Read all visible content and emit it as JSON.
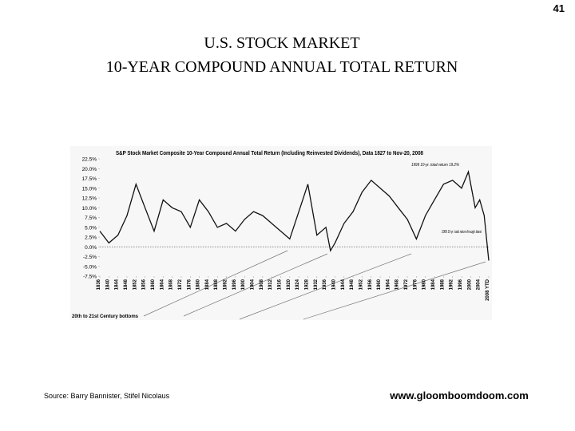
{
  "page_number": "41",
  "title_lines": [
    "U.S. STOCK MARKET",
    "10-YEAR COMPOUND ANNUAL TOTAL RETURN"
  ],
  "source": "Source: Barry Bannister, Stifel Nicolaus",
  "url": "www.gloomboomdoom.com",
  "chart_data": {
    "type": "line",
    "title": "S&P Stock Market Composite 10-Year Compound Annual Total Return (Including Reinvested Dividends), Data 1827 to Nov-20, 2008",
    "annotations": [
      "1999 10-yr. total return 19.2%",
      "2008 10-yr. total return through latest",
      "20th to 21st Century bottoms"
    ],
    "x": [
      1836,
      1840,
      1844,
      1848,
      1852,
      1856,
      1860,
      1864,
      1868,
      1872,
      1876,
      1880,
      1884,
      1888,
      1892,
      1896,
      1900,
      1904,
      1908,
      1912,
      1916,
      1920,
      1924,
      1928,
      1932,
      1936,
      1938,
      1940,
      1944,
      1948,
      1952,
      1956,
      1960,
      1964,
      1968,
      1972,
      1976,
      1980,
      1984,
      1988,
      1992,
      1996,
      1999,
      2002,
      2004,
      2006,
      2008
    ],
    "series": [
      {
        "name": "10-Year Compound Annual Total Return",
        "color": "#111111",
        "values": [
          4,
          1,
          3,
          8,
          16,
          10,
          4,
          12,
          10,
          9,
          5,
          12,
          9,
          5,
          6,
          4,
          7,
          9,
          8,
          6,
          4,
          2,
          9,
          16,
          3,
          5,
          -1,
          1,
          6,
          9,
          14,
          17,
          15,
          13,
          10,
          7,
          2,
          8,
          12,
          16,
          17,
          15,
          19.2,
          10,
          12,
          8,
          -3.5
        ]
      }
    ],
    "xlim": [
      1836,
      2008
    ],
    "xticks": [
      1836,
      1840,
      1844,
      1848,
      1852,
      1856,
      1860,
      1864,
      1868,
      1872,
      1876,
      1880,
      1884,
      1888,
      1892,
      1896,
      1900,
      1904,
      1908,
      1912,
      1916,
      1920,
      1924,
      1928,
      1932,
      1936,
      1940,
      1944,
      1948,
      1952,
      1956,
      1960,
      1964,
      1968,
      1972,
      1976,
      1980,
      1984,
      1988,
      1992,
      1996,
      2000,
      2004,
      {
        "value": 2008,
        "label": "2008 YTD"
      }
    ],
    "ylim": [
      -7.5,
      22.5
    ],
    "yticks": [
      {
        "value": -7.5,
        "label": "-7.5%"
      },
      {
        "value": -5,
        "label": "-5.0%"
      },
      {
        "value": -2.5,
        "label": "-2.5%"
      },
      {
        "value": 0,
        "label": "0.0%"
      },
      {
        "value": 2.5,
        "label": "2.5%"
      },
      {
        "value": 5,
        "label": "5.0%"
      },
      {
        "value": 7.5,
        "label": "7.5%"
      },
      {
        "value": 10,
        "label": "10.0%"
      },
      {
        "value": 12.5,
        "label": "12.5%"
      },
      {
        "value": 15,
        "label": "15.0%"
      },
      {
        "value": 17.5,
        "label": "17.5%"
      },
      {
        "value": 20,
        "label": "20.0%"
      },
      {
        "value": 22.5,
        "label": "22.5%"
      }
    ],
    "zero_line": true
  }
}
